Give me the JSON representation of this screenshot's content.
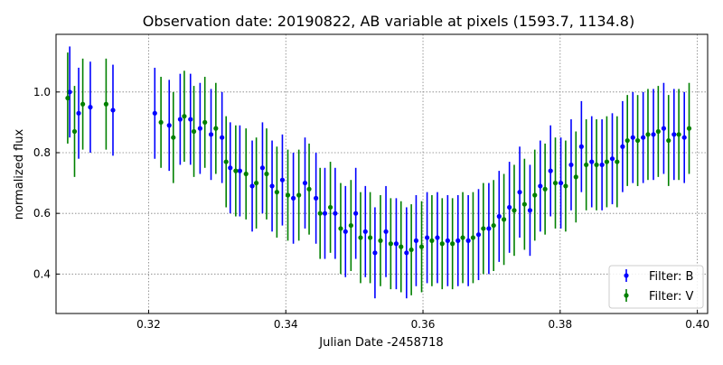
{
  "chart_data": {
    "type": "scatter",
    "title": "Observation date: 20190822, AB variable at pixels (1593.7, 1134.8)",
    "xlabel": "Julian Date -2458718",
    "ylabel": "normalized flux",
    "xlim": [
      0.3065,
      0.4015
    ],
    "ylim": [
      0.27,
      1.19
    ],
    "xticks": [
      0.32,
      0.34,
      0.36,
      0.38,
      0.4
    ],
    "xtick_labels": [
      "0.32",
      "0.34",
      "0.36",
      "0.38",
      "0.40"
    ],
    "yticks": [
      0.4,
      0.6,
      0.8,
      1.0
    ],
    "ytick_labels": [
      "0.4",
      "0.6",
      "0.8",
      "1.0"
    ],
    "grid": true,
    "legend_position": "lower-right",
    "series": [
      {
        "name": "Filter: B",
        "color": "#0000ff",
        "marker": "circle",
        "x": [
          0.3085,
          0.3098,
          0.3115,
          0.3148,
          0.3209,
          0.323,
          0.3246,
          0.3261,
          0.3275,
          0.3291,
          0.3307,
          0.3319,
          0.3333,
          0.3351,
          0.3366,
          0.338,
          0.3395,
          0.3411,
          0.3428,
          0.3444,
          0.3457,
          0.3472,
          0.3487,
          0.3502,
          0.3516,
          0.353,
          0.3546,
          0.3561,
          0.3576,
          0.359,
          0.3606,
          0.3621,
          0.3636,
          0.3651,
          0.3666,
          0.3681,
          0.3696,
          0.3711,
          0.3726,
          0.3741,
          0.3756,
          0.3771,
          0.3786,
          0.3801,
          0.3816,
          0.3831,
          0.3846,
          0.3861,
          0.3876,
          0.3891,
          0.3906,
          0.3921,
          0.3936,
          0.3951,
          0.3966,
          0.3981
        ],
        "y": [
          1.0,
          0.93,
          0.95,
          0.94,
          0.93,
          0.89,
          0.91,
          0.91,
          0.88,
          0.86,
          0.85,
          0.75,
          0.74,
          0.69,
          0.75,
          0.69,
          0.71,
          0.65,
          0.7,
          0.65,
          0.6,
          0.6,
          0.54,
          0.6,
          0.54,
          0.47,
          0.54,
          0.5,
          0.47,
          0.51,
          0.52,
          0.52,
          0.51,
          0.51,
          0.51,
          0.53,
          0.55,
          0.59,
          0.62,
          0.67,
          0.61,
          0.69,
          0.74,
          0.7,
          0.76,
          0.82,
          0.77,
          0.76,
          0.78,
          0.82,
          0.85,
          0.85,
          0.86,
          0.88,
          0.86,
          0.85
        ],
        "err": [
          0.15,
          0.15,
          0.15,
          0.15,
          0.15,
          0.15,
          0.15,
          0.15,
          0.15,
          0.15,
          0.15,
          0.15,
          0.15,
          0.15,
          0.15,
          0.15,
          0.15,
          0.15,
          0.15,
          0.15,
          0.15,
          0.15,
          0.15,
          0.15,
          0.15,
          0.15,
          0.15,
          0.15,
          0.15,
          0.15,
          0.15,
          0.15,
          0.15,
          0.15,
          0.15,
          0.15,
          0.15,
          0.15,
          0.15,
          0.15,
          0.15,
          0.15,
          0.15,
          0.15,
          0.15,
          0.15,
          0.15,
          0.15,
          0.15,
          0.15,
          0.15,
          0.15,
          0.15,
          0.15,
          0.15,
          0.15
        ]
      },
      {
        "name": "Filter: V",
        "color": "#008000",
        "marker": "circle",
        "x": [
          0.3082,
          0.3092,
          0.3104,
          0.3138,
          0.3218,
          0.3236,
          0.3252,
          0.3266,
          0.3282,
          0.3298,
          0.3313,
          0.3327,
          0.3342,
          0.3357,
          0.3372,
          0.3387,
          0.3403,
          0.3419,
          0.3434,
          0.345,
          0.3465,
          0.348,
          0.3495,
          0.3509,
          0.3523,
          0.3538,
          0.3553,
          0.3568,
          0.3583,
          0.3598,
          0.3613,
          0.3628,
          0.3643,
          0.3658,
          0.3673,
          0.3688,
          0.3703,
          0.3718,
          0.3733,
          0.3748,
          0.3763,
          0.3778,
          0.3793,
          0.3808,
          0.3823,
          0.3838,
          0.3853,
          0.3868,
          0.3883,
          0.3898,
          0.3913,
          0.3928,
          0.3943,
          0.3958,
          0.3973,
          0.3988
        ],
        "y": [
          0.98,
          0.87,
          0.96,
          0.96,
          0.9,
          0.85,
          0.92,
          0.87,
          0.9,
          0.88,
          0.77,
          0.74,
          0.73,
          0.7,
          0.73,
          0.67,
          0.66,
          0.66,
          0.68,
          0.6,
          0.62,
          0.55,
          0.56,
          0.52,
          0.52,
          0.51,
          0.5,
          0.49,
          0.48,
          0.49,
          0.51,
          0.5,
          0.5,
          0.52,
          0.52,
          0.55,
          0.56,
          0.58,
          0.61,
          0.63,
          0.66,
          0.68,
          0.7,
          0.69,
          0.72,
          0.76,
          0.76,
          0.77,
          0.77,
          0.84,
          0.84,
          0.86,
          0.87,
          0.84,
          0.86,
          0.88
        ],
        "err": [
          0.15,
          0.15,
          0.15,
          0.15,
          0.15,
          0.15,
          0.15,
          0.15,
          0.15,
          0.15,
          0.15,
          0.15,
          0.15,
          0.15,
          0.15,
          0.15,
          0.15,
          0.15,
          0.15,
          0.15,
          0.15,
          0.15,
          0.15,
          0.15,
          0.15,
          0.15,
          0.15,
          0.15,
          0.15,
          0.15,
          0.15,
          0.15,
          0.15,
          0.15,
          0.15,
          0.15,
          0.15,
          0.15,
          0.15,
          0.15,
          0.15,
          0.15,
          0.15,
          0.15,
          0.15,
          0.15,
          0.15,
          0.15,
          0.15,
          0.15,
          0.15,
          0.15,
          0.15,
          0.15,
          0.15,
          0.15
        ]
      }
    ]
  }
}
